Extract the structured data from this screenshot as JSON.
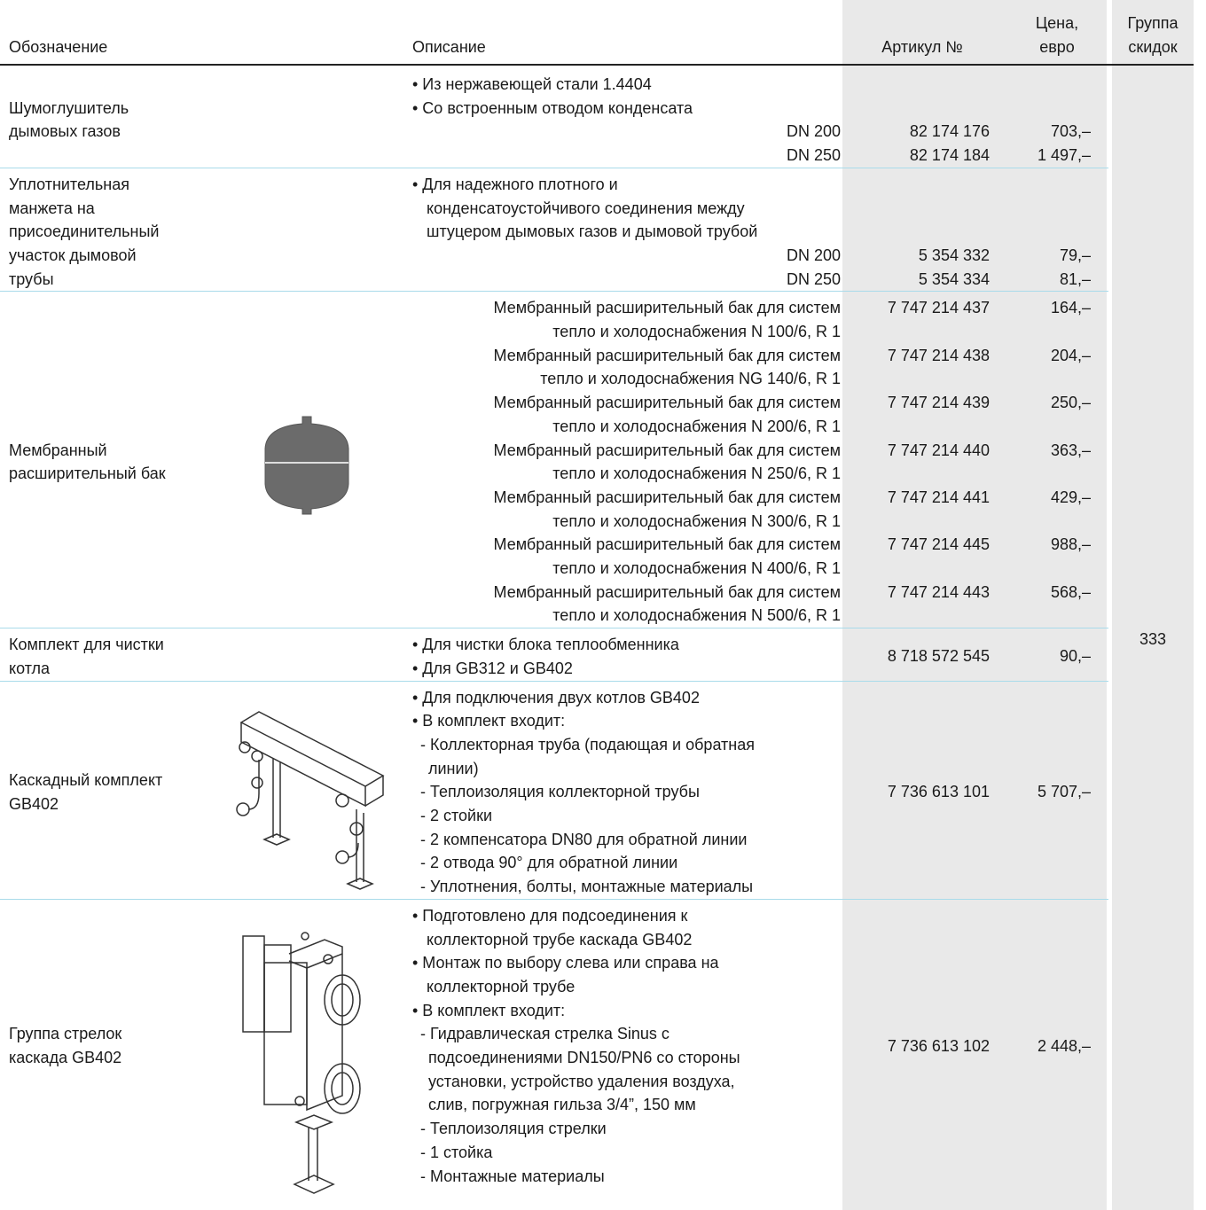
{
  "header": {
    "designation": "Обозначение",
    "description": "Описание",
    "article": "Артикул №",
    "price": [
      "Цена,",
      "евро"
    ],
    "group": [
      "Группа",
      "скидок"
    ]
  },
  "group_value": "333",
  "rows": [
    {
      "designation": [
        "Шумоглушитель",
        "дымовых газов"
      ],
      "description": [
        "• Из нержавеющей стали 1.4404",
        "• Со встроенным отводом конденсата"
      ],
      "items": [
        {
          "label": [
            "DN 200"
          ],
          "article": "82 174 176",
          "price": "703,–"
        },
        {
          "label": [
            "DN 250"
          ],
          "article": "82 174 184",
          "price": "1 497,–"
        }
      ]
    },
    {
      "designation": [
        "Уплотнительная",
        "манжета на",
        "присоединительный",
        "участок дымовой",
        "трубы"
      ],
      "description": [
        "• Для надежного плотного и",
        "конденсатоустойчивого соединения между",
        "штуцером дымовых газов и дымовой трубой"
      ],
      "items": [
        {
          "label": [
            "DN 200"
          ],
          "article": "5 354 332",
          "price": "79,–"
        },
        {
          "label": [
            "DN 250"
          ],
          "article": "5 354 334",
          "price": "81,–"
        }
      ]
    },
    {
      "designation": [
        "Мембранный",
        "расширительный бак"
      ],
      "description": [],
      "items": [
        {
          "label": [
            "Мембранный расширительный бак для систем",
            "тепло и холодоснабжения N 100/6, R 1"
          ],
          "article": "7 747 214 437",
          "price": "164,–"
        },
        {
          "label": [
            "Мембранный расширительный бак для систем",
            "тепло и холодоснабжения NG 140/6, R 1"
          ],
          "article": "7 747 214 438",
          "price": "204,–"
        },
        {
          "label": [
            "Мембранный расширительный бак для систем",
            "тепло и холодоснабжения N 200/6, R 1"
          ],
          "article": "7 747 214 439",
          "price": "250,–"
        },
        {
          "label": [
            "Мембранный расширительный бак для систем",
            "тепло и холодоснабжения N 250/6, R 1"
          ],
          "article": "7 747 214 440",
          "price": "363,–"
        },
        {
          "label": [
            "Мембранный расширительный бак для систем",
            "тепло и холодоснабжения N 300/6, R 1"
          ],
          "article": "7 747 214 441",
          "price": "429,–"
        },
        {
          "label": [
            "Мембранный расширительный бак для систем",
            "тепло и холодоснабжения N 400/6, R 1"
          ],
          "article": "7 747 214 445",
          "price": "988,–"
        },
        {
          "label": [
            "Мембранный расширительный бак для систем",
            "тепло и холодоснабжения N 500/6, R 1"
          ],
          "article": "7 747 214 443",
          "price": "568,–"
        }
      ]
    },
    {
      "designation": [
        "Комплект для чистки",
        "котла"
      ],
      "description": [
        "• Для чистки блока теплообменника",
        "• Для GB312 и GB402"
      ],
      "items": [
        {
          "article": "8 718 572 545",
          "price": "90,–"
        }
      ]
    },
    {
      "designation": [
        "Каскадный комплект",
        "GB402"
      ],
      "description": [
        "• Для подключения двух котлов GB402",
        "• В комплект входит:",
        "- Коллекторная труба (подающая и обратная",
        "линии)",
        "- Теплоизоляция коллекторной трубы",
        "- 2 стойки",
        "- 2 компенсатора DN80 для обратной линии",
        "- 2 отвода 90° для обратной линии",
        "- Уплотнения, болты, монтажные материалы"
      ],
      "items": [
        {
          "article": "7 736 613 101",
          "price": "5 707,–"
        }
      ]
    },
    {
      "designation": [
        "Группа стрелок",
        "каскада GB402"
      ],
      "description": [
        "• Подготовлено для подсоединения к",
        "коллекторной трубе каскада GB402",
        "• Монтаж по выбору слева или справа на",
        "коллекторной трубе",
        "• В комплект входит:",
        "- Гидравлическая стрелка Sinus с",
        "подсоединениями DN150/PN6 со стороны",
        "установки, устройство удаления воздуха,",
        "слив, погружная гильза 3/4”, 150 мм",
        "- Теплоизоляция стрелки",
        "- 1 стойка",
        "- Монтажные материалы"
      ],
      "items": [
        {
          "article": "7 736 613 102",
          "price": "2 448,–"
        }
      ]
    }
  ]
}
